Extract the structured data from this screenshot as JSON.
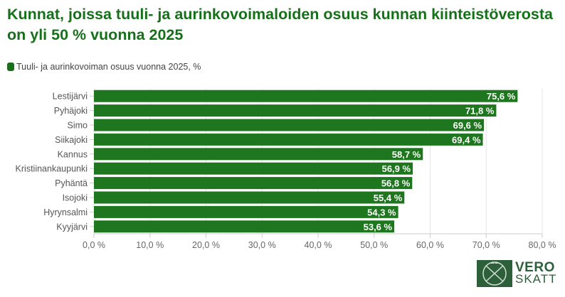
{
  "chart_data": {
    "type": "bar",
    "orientation": "horizontal",
    "title": "Kunnat, joissa tuuli- ja aurinkovoimaloiden osuus kunnan kiinteistöverosta on yli 50 % vuonna 2025",
    "categories": [
      "Lestijärvi",
      "Pyhäjoki",
      "Simo",
      "Siikajoki",
      "Kannus",
      "Kristiinankaupunki",
      "Pyhäntä",
      "Isojoki",
      "Hyrynsalmi",
      "Kyyjärvi"
    ],
    "series": [
      {
        "name": "Tuuli- ja aurinkovoiman osuus vuonna 2025, %",
        "values": [
          75.6,
          71.8,
          69.6,
          69.4,
          58.7,
          56.9,
          56.8,
          55.4,
          54.3,
          53.6
        ],
        "color": "#1e761e"
      }
    ],
    "data_labels": [
      "75,6 %",
      "71,8 %",
      "69,6 %",
      "69,4 %",
      "58,7 %",
      "56,9 %",
      "56,8 %",
      "55,4 %",
      "54,3 %",
      "53,6 %"
    ],
    "xlim": [
      0,
      80
    ],
    "x_ticks": [
      0,
      10,
      20,
      30,
      40,
      50,
      60,
      70,
      80
    ],
    "x_tick_labels": [
      "0,0 %",
      "10,0 %",
      "20,0 %",
      "30,0 %",
      "40,0 %",
      "50,0 %",
      "60,0 %",
      "70,0 %",
      "80,0 %"
    ],
    "grid": true,
    "legend_position": "top-left"
  },
  "logo": {
    "line1": "VERO",
    "line2": "SKATT",
    "color": "#2c5f3a"
  }
}
